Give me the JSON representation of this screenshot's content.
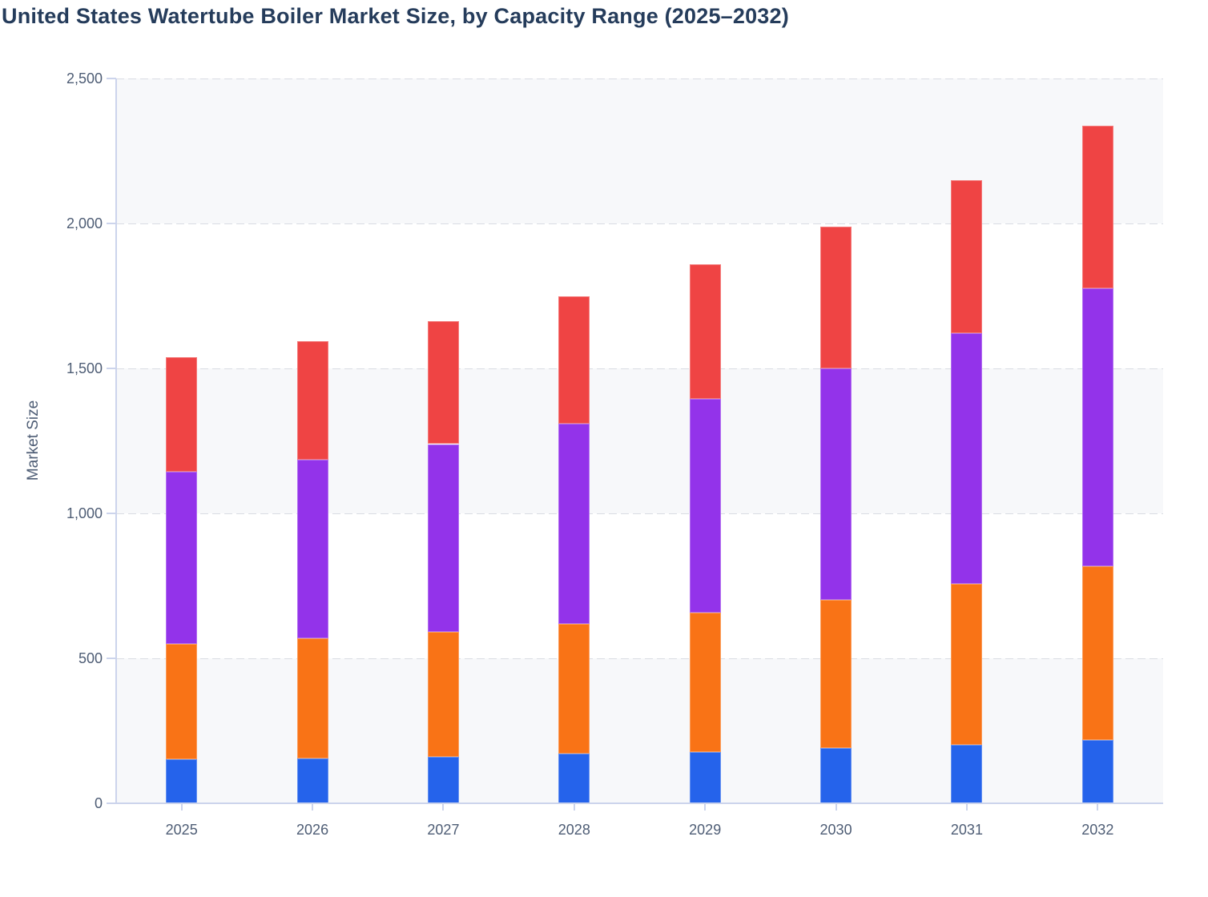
{
  "page": {
    "title": "United States Watertube Boiler Market Size, by Capacity Range (2025–2032)"
  },
  "y_axis": {
    "title": "Market Size",
    "tick_labels": [
      "0",
      "500",
      "1,000",
      "1,500",
      "2,000",
      "2,500"
    ],
    "tick_values": [
      0,
      500,
      1000,
      1500,
      2000,
      2500
    ]
  },
  "x_axis": {
    "labels": [
      "2025",
      "2026",
      "2027",
      "2028",
      "2029",
      "2030",
      "2031",
      "2032"
    ]
  },
  "colors": {
    "background": "#ffffff",
    "title_text": "#253c5b",
    "axis_text": "#4e5d75",
    "axis_line": "#ccd4ec",
    "gridline": "#d9dce3",
    "plot_band": "#f7f8fa",
    "segment_blue": "#2563eb",
    "segment_orange": "#f97316",
    "segment_purple": "#9333ea",
    "segment_red": "#ef4444"
  },
  "chart_data": {
    "type": "bar",
    "stacked": true,
    "title": "United States Watertube Boiler Market Size, by Capacity Range (2025–2032)",
    "xlabel": "",
    "ylabel": "Market Size",
    "ylim": [
      0,
      2500
    ],
    "y_tick_step": 500,
    "grid": "horizontal-dashed",
    "plot_bands": "alternating-gray-white",
    "legend_position": "none",
    "categories": [
      "2025",
      "2026",
      "2027",
      "2028",
      "2029",
      "2030",
      "2031",
      "2032"
    ],
    "series": [
      {
        "name": "segment-1-blue",
        "color": "#2563eb",
        "values": [
          152,
          156,
          161,
          170,
          178,
          190,
          203,
          218
        ]
      },
      {
        "name": "segment-2-orange",
        "color": "#f97316",
        "values": [
          399,
          413,
          430,
          450,
          479,
          513,
          553,
          601
        ]
      },
      {
        "name": "segment-3-purple",
        "color": "#9333ea",
        "values": [
          593,
          616,
          648,
          690,
          738,
          797,
          866,
          956
        ]
      },
      {
        "name": "segment-4-red",
        "color": "#ef4444",
        "values": [
          395,
          409,
          424,
          440,
          463,
          490,
          526,
          563
        ]
      }
    ],
    "stacked_totals": [
      1539,
      1594,
      1663,
      1750,
      1858,
      1990,
      2148,
      2338
    ]
  }
}
